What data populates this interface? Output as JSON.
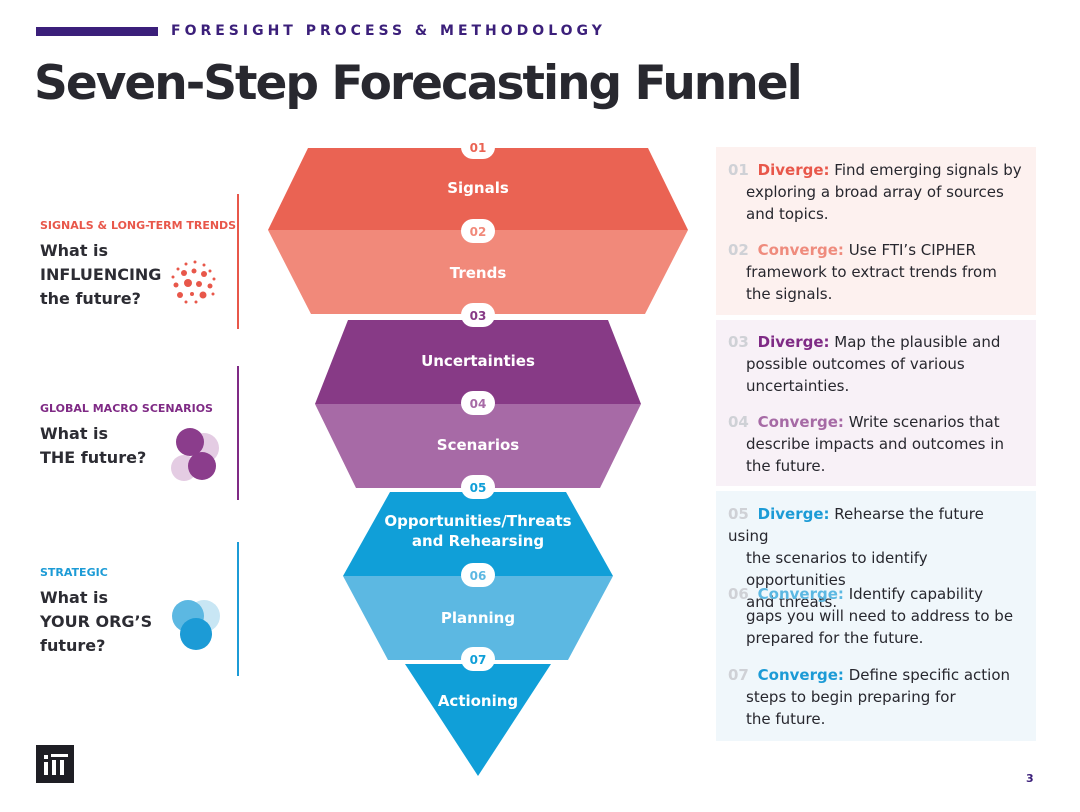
{
  "header": {
    "eyebrow": "FORESIGHT PROCESS & METHODOLOGY",
    "title": "Seven-Step Forecasting Funnel"
  },
  "sections": [
    {
      "tag": "SIGNALS & LONG-TERM TRENDS",
      "q1": "What is",
      "q2": "INFLUENCING",
      "q3": "the future?",
      "color": "#e8574a",
      "icon": "dot-cluster-icon"
    },
    {
      "tag": "GLOBAL MACRO SCENARIOS",
      "q1": "What is",
      "q2": "THE future?",
      "q3": "",
      "color": "#7f2a85",
      "icon": "overlapping-circles-icon"
    },
    {
      "tag": "STRATEGIC",
      "q1": "What is",
      "q2": "YOUR ORG’S",
      "q3": "future?",
      "color": "#1c9bd6",
      "icon": "overlapping-circles-icon"
    }
  ],
  "funnel": [
    {
      "num": "01",
      "label": "Signals",
      "color": "#ea6353"
    },
    {
      "num": "02",
      "label": "Trends",
      "color": "#f1897a"
    },
    {
      "num": "03",
      "label": "Uncertainties",
      "color": "#873a86"
    },
    {
      "num": "04",
      "label": "Scenarios",
      "color": "#a76aa6"
    },
    {
      "num": "05",
      "label": "Opportunities/Threats",
      "label2": "and Rehearsing",
      "color": "#109fd8"
    },
    {
      "num": "06",
      "label": "Planning",
      "color": "#5cb8e2"
    },
    {
      "num": "07",
      "label": "Actioning",
      "color": "#109fd8"
    }
  ],
  "steps": [
    {
      "num": "01",
      "verb": "Diverge:",
      "l1": "Find emerging signals by",
      "l2": "exploring a broad array of sources",
      "l3": "and topics.",
      "color": "#e8574a"
    },
    {
      "num": "02",
      "verb": "Converge:",
      "l1": "Use FTI’s CIPHER",
      "l2": "framework to extract trends from",
      "l3": "the signals.",
      "color": "#ef8b7d"
    },
    {
      "num": "03",
      "verb": "Diverge:",
      "l1": "Map the plausible and",
      "l2": "possible outcomes of various",
      "l3": "uncertainties.",
      "color": "#7f2a85"
    },
    {
      "num": "04",
      "verb": "Converge:",
      "l1": "Write scenarios that",
      "l2": "describe impacts and outcomes in",
      "l3": "the future.",
      "color": "#a66aa5"
    },
    {
      "num": "05",
      "verb": "Diverge:",
      "l1": "Rehearse the future using",
      "l2": "the scenarios to identify opportunities",
      "l3": "and threats.",
      "color": "#1c9bd6"
    },
    {
      "num": "06",
      "verb": "Converge:",
      "l1": "Identify capability",
      "l2": "gaps you will need to address to be",
      "l3": "prepared for the future.",
      "color": "#5cb8e2"
    },
    {
      "num": "07",
      "verb": "Converge:",
      "l1": "Define specific action",
      "l2": "steps to begin preparing for",
      "l3": "the future.",
      "color": "#1c9bd6"
    }
  ],
  "panels": [
    {
      "color": "#fdf1ef"
    },
    {
      "color": "#f8f1f7"
    },
    {
      "color": "#f0f7fb"
    }
  ],
  "footer": {
    "page_number": "3",
    "logo": "fti-logo"
  }
}
